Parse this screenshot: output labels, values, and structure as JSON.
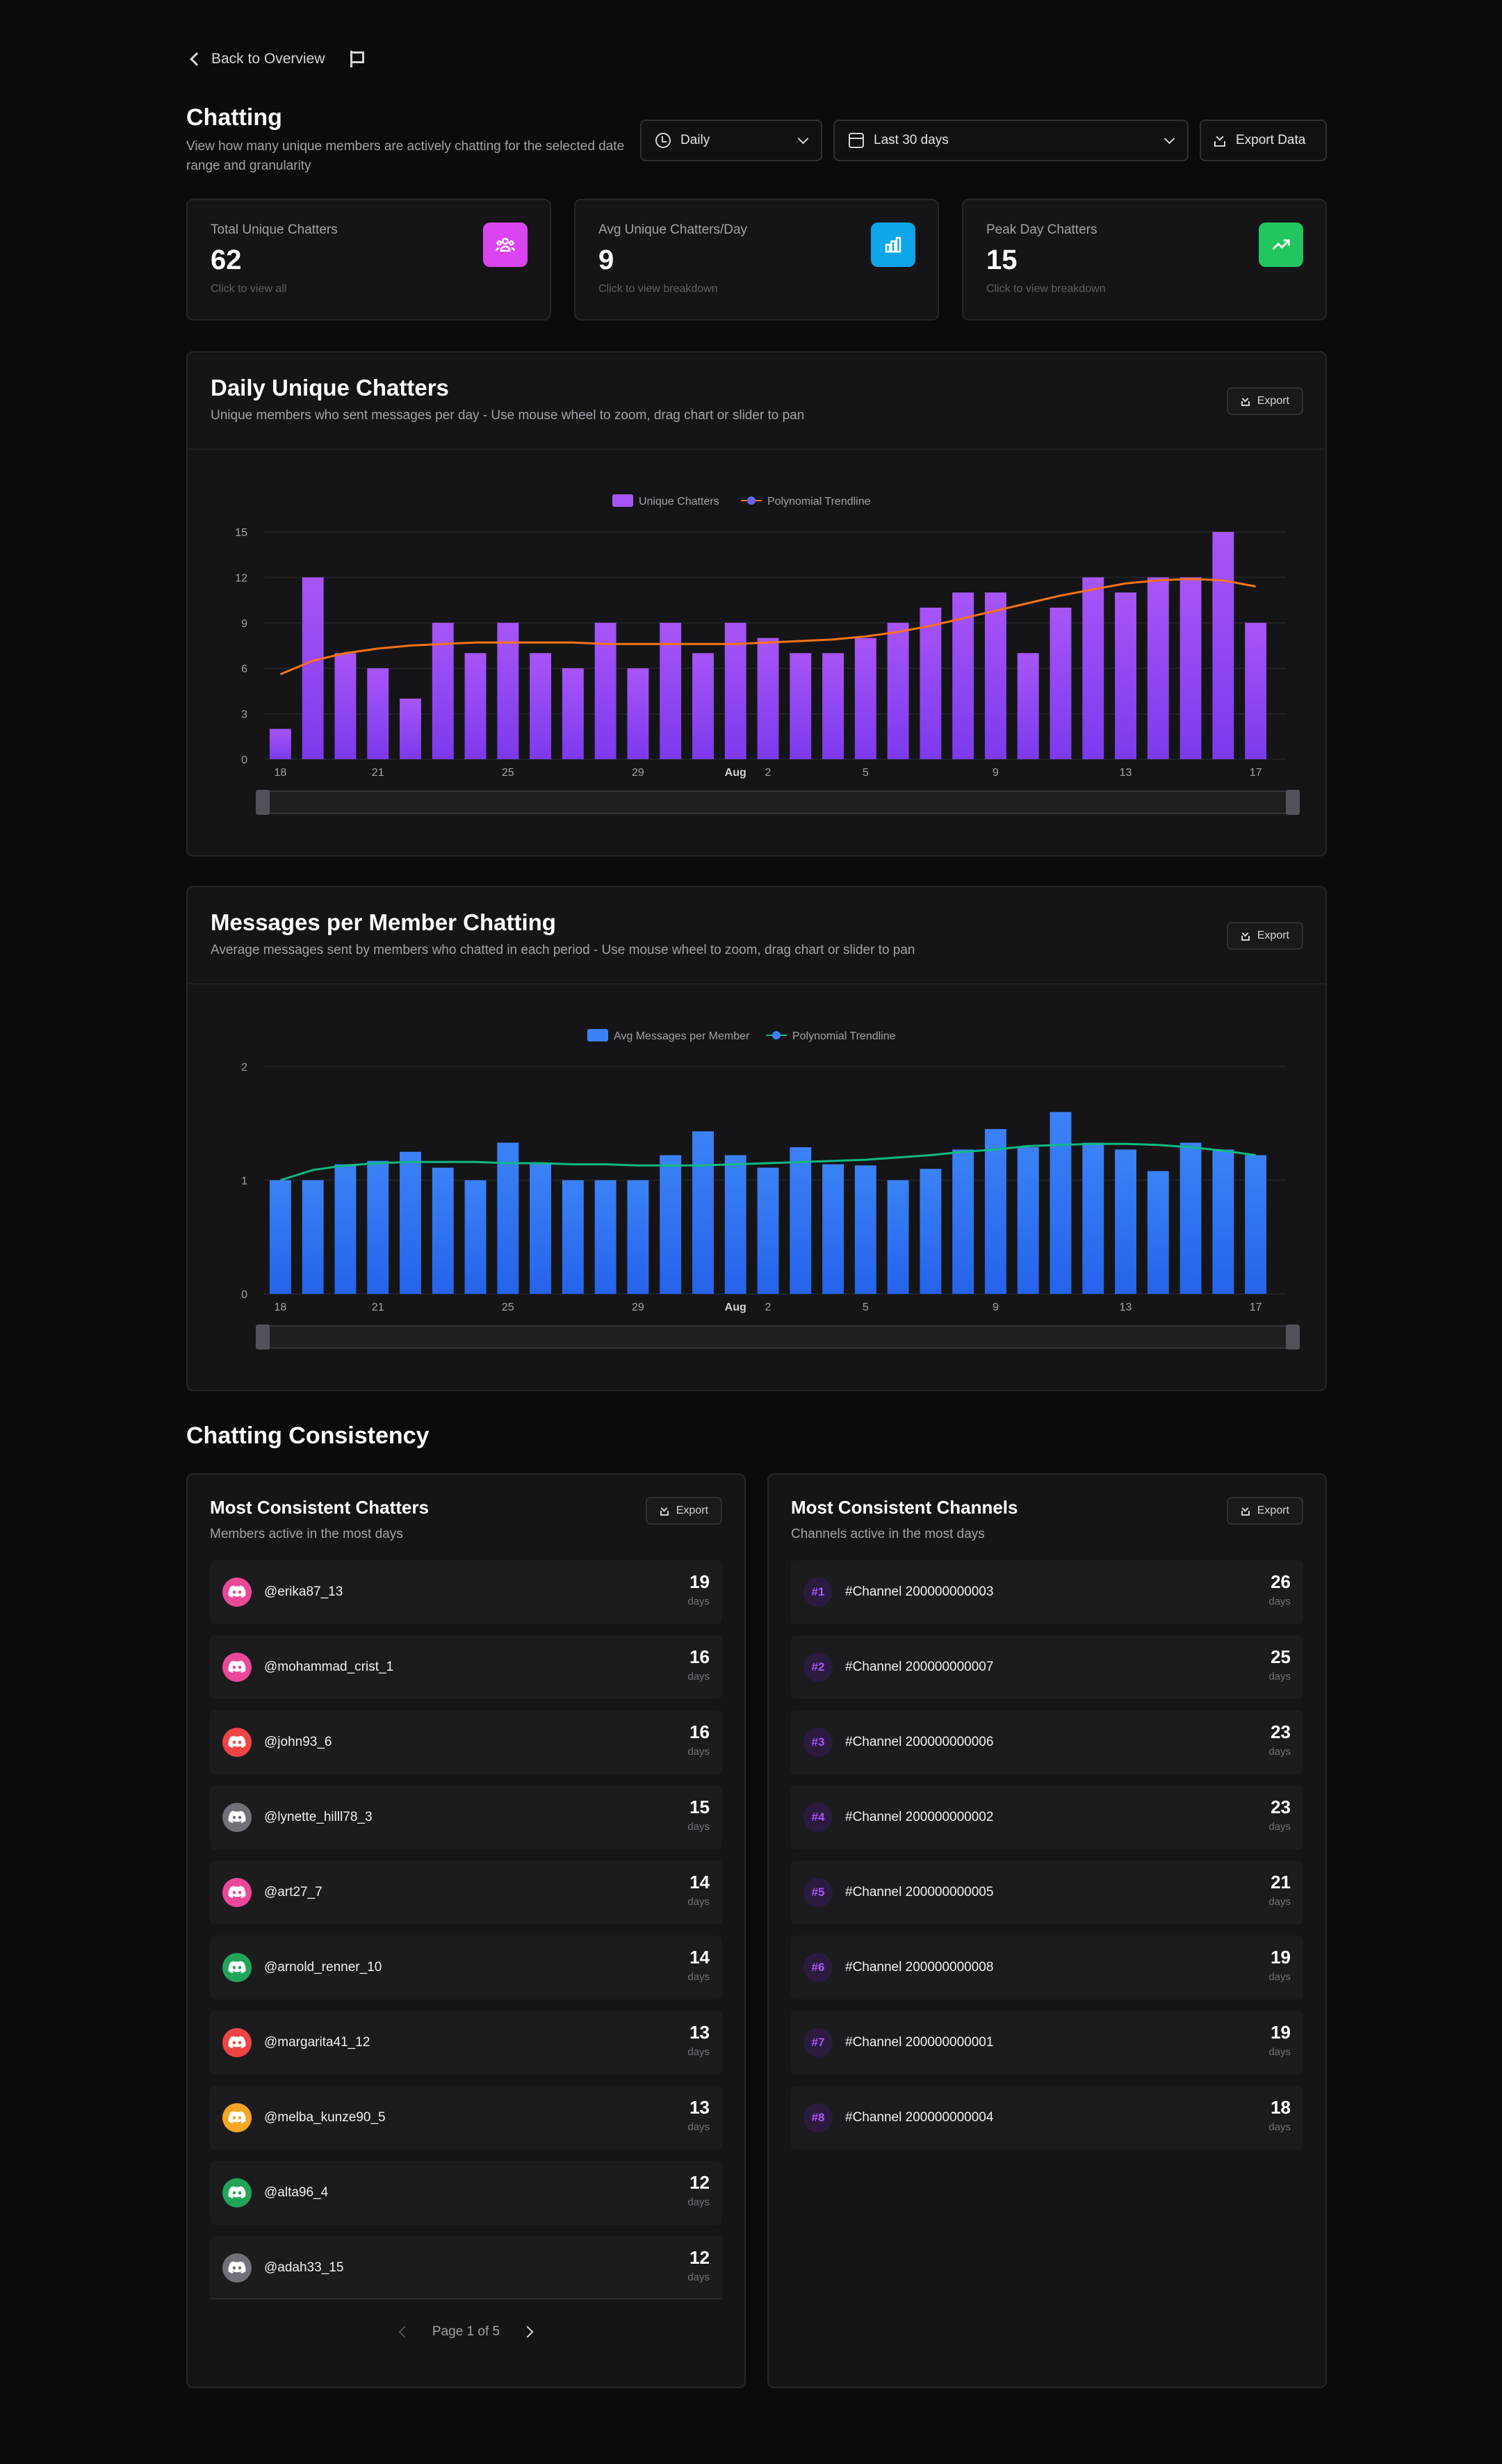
{
  "nav": {
    "back_label": "Back to Overview"
  },
  "header": {
    "title": "Chatting",
    "description": "View how many unique members are actively chatting for the selected date range and granularity",
    "granularity": "Daily",
    "date_range": "Last 30 days",
    "export_label": "Export Data"
  },
  "stats": [
    {
      "label": "Total Unique Chatters",
      "value": "62",
      "hint": "Click to view all",
      "icon": "users-icon",
      "color": "#d946ef"
    },
    {
      "label": "Avg Unique Chatters/Day",
      "value": "9",
      "hint": "Click to view breakdown",
      "icon": "bar-chart-icon",
      "color": "#0ea5e9"
    },
    {
      "label": "Peak Day Chatters",
      "value": "15",
      "hint": "Click to view breakdown",
      "icon": "trend-up-icon",
      "color": "#22c55e"
    }
  ],
  "daily_card": {
    "title": "Daily Unique Chatters",
    "subtitle": "Unique members who sent messages per day - Use mouse wheel to zoom, drag chart or slider to pan",
    "export_label": "Export"
  },
  "messages_card": {
    "title": "Messages per Member Chatting",
    "subtitle": "Average messages sent by members who chatted in each period - Use mouse wheel to zoom, drag chart or slider to pan",
    "export_label": "Export"
  },
  "chart_data": [
    {
      "type": "bar",
      "categories": [
        "Jul 18",
        "Jul 19",
        "Jul 20",
        "Jul 21",
        "Jul 22",
        "Jul 23",
        "Jul 24",
        "Jul 25",
        "Jul 26",
        "Jul 27",
        "Jul 28",
        "Jul 29",
        "Jul 30",
        "Jul 31",
        "Aug 1",
        "Aug 2",
        "Aug 3",
        "Aug 4",
        "Aug 5",
        "Aug 6",
        "Aug 7",
        "Aug 8",
        "Aug 9",
        "Aug 10",
        "Aug 11",
        "Aug 12",
        "Aug 13",
        "Aug 14",
        "Aug 15",
        "Aug 16",
        "Aug 17"
      ],
      "series": [
        {
          "name": "Unique Chatters",
          "values": [
            2,
            12,
            7,
            6,
            4,
            9,
            7,
            9,
            7,
            6,
            9,
            6,
            9,
            7,
            9,
            8,
            7,
            7,
            8,
            9,
            10,
            11,
            11,
            7,
            10,
            12,
            11,
            12,
            12,
            15,
            9
          ],
          "color": "#a855f7"
        },
        {
          "name": "Polynomial Trendline",
          "type": "line",
          "values": [
            5.6,
            6.5,
            7.0,
            7.3,
            7.5,
            7.6,
            7.7,
            7.7,
            7.7,
            7.7,
            7.6,
            7.6,
            7.6,
            7.6,
            7.6,
            7.7,
            7.8,
            7.9,
            8.1,
            8.4,
            8.8,
            9.3,
            9.8,
            10.3,
            10.8,
            11.2,
            11.6,
            11.8,
            11.9,
            11.8,
            11.4
          ],
          "color": "#f97316"
        }
      ],
      "tick_labels": [
        "18",
        "21",
        "25",
        "29",
        "Aug",
        "2",
        "5",
        "9",
        "13",
        "17"
      ],
      "ylim": [
        0,
        15
      ],
      "yticks": [
        0,
        3,
        6,
        9,
        12,
        15
      ],
      "grid": true,
      "legend": "top-center"
    },
    {
      "type": "bar",
      "categories": [
        "Jul 18",
        "Jul 19",
        "Jul 20",
        "Jul 21",
        "Jul 22",
        "Jul 23",
        "Jul 24",
        "Jul 25",
        "Jul 26",
        "Jul 27",
        "Jul 28",
        "Jul 29",
        "Jul 30",
        "Jul 31",
        "Aug 1",
        "Aug 2",
        "Aug 3",
        "Aug 4",
        "Aug 5",
        "Aug 6",
        "Aug 7",
        "Aug 8",
        "Aug 9",
        "Aug 10",
        "Aug 11",
        "Aug 12",
        "Aug 13",
        "Aug 14",
        "Aug 15",
        "Aug 16",
        "Aug 17"
      ],
      "series": [
        {
          "name": "Avg Messages per Member",
          "values": [
            1.0,
            1.0,
            1.14,
            1.17,
            1.25,
            1.11,
            1.0,
            1.33,
            1.14,
            1.0,
            1.0,
            1.0,
            1.22,
            1.43,
            1.22,
            1.11,
            1.29,
            1.14,
            1.13,
            1.0,
            1.1,
            1.27,
            1.45,
            1.29,
            1.6,
            1.33,
            1.27,
            1.08,
            1.33,
            1.27,
            1.22
          ],
          "color": "#3b82f6"
        },
        {
          "name": "Polynomial Trendline",
          "type": "line",
          "values": [
            1.0,
            1.09,
            1.13,
            1.15,
            1.16,
            1.16,
            1.16,
            1.15,
            1.15,
            1.14,
            1.14,
            1.13,
            1.13,
            1.13,
            1.14,
            1.15,
            1.16,
            1.17,
            1.18,
            1.2,
            1.22,
            1.25,
            1.27,
            1.3,
            1.31,
            1.32,
            1.32,
            1.31,
            1.29,
            1.26,
            1.22
          ],
          "color": "#10b981"
        }
      ],
      "tick_labels": [
        "18",
        "21",
        "25",
        "29",
        "Aug",
        "2",
        "5",
        "9",
        "13",
        "17"
      ],
      "ylim": [
        0,
        2
      ],
      "yticks": [
        0,
        1,
        2
      ],
      "grid": true,
      "legend": "top-center"
    }
  ],
  "consistency": {
    "title": "Chatting Consistency",
    "chatters": {
      "title": "Most Consistent Chatters",
      "subtitle": "Members active in the most days",
      "export_label": "Export",
      "unit": "days",
      "items": [
        {
          "name": "@erika87_13",
          "days": "19",
          "color": "#ec4899"
        },
        {
          "name": "@mohammad_crist_1",
          "days": "16",
          "color": "#ec4899"
        },
        {
          "name": "@john93_6",
          "days": "16",
          "color": "#ef4444"
        },
        {
          "name": "@lynette_hilll78_3",
          "days": "15",
          "color": "#71717a"
        },
        {
          "name": "@art27_7",
          "days": "14",
          "color": "#ec4899"
        },
        {
          "name": "@arnold_renner_10",
          "days": "14",
          "color": "#22a559"
        },
        {
          "name": "@margarita41_12",
          "days": "13",
          "color": "#ef4444"
        },
        {
          "name": "@melba_kunze90_5",
          "days": "13",
          "color": "#f5a623"
        },
        {
          "name": "@alta96_4",
          "days": "12",
          "color": "#22a559"
        },
        {
          "name": "@adah33_15",
          "days": "12",
          "color": "#71717a"
        }
      ],
      "page_label": "Page 1 of 5"
    },
    "channels": {
      "title": "Most Consistent Channels",
      "subtitle": "Channels active in the most days",
      "export_label": "Export",
      "unit": "days",
      "items": [
        {
          "rank": "#1",
          "name": "#Channel 200000000003",
          "days": "26"
        },
        {
          "rank": "#2",
          "name": "#Channel 200000000007",
          "days": "25"
        },
        {
          "rank": "#3",
          "name": "#Channel 200000000006",
          "days": "23"
        },
        {
          "rank": "#4",
          "name": "#Channel 200000000002",
          "days": "23"
        },
        {
          "rank": "#5",
          "name": "#Channel 200000000005",
          "days": "21"
        },
        {
          "rank": "#6",
          "name": "#Channel 200000000008",
          "days": "19"
        },
        {
          "rank": "#7",
          "name": "#Channel 200000000001",
          "days": "19"
        },
        {
          "rank": "#8",
          "name": "#Channel 200000000004",
          "days": "18"
        }
      ]
    }
  }
}
